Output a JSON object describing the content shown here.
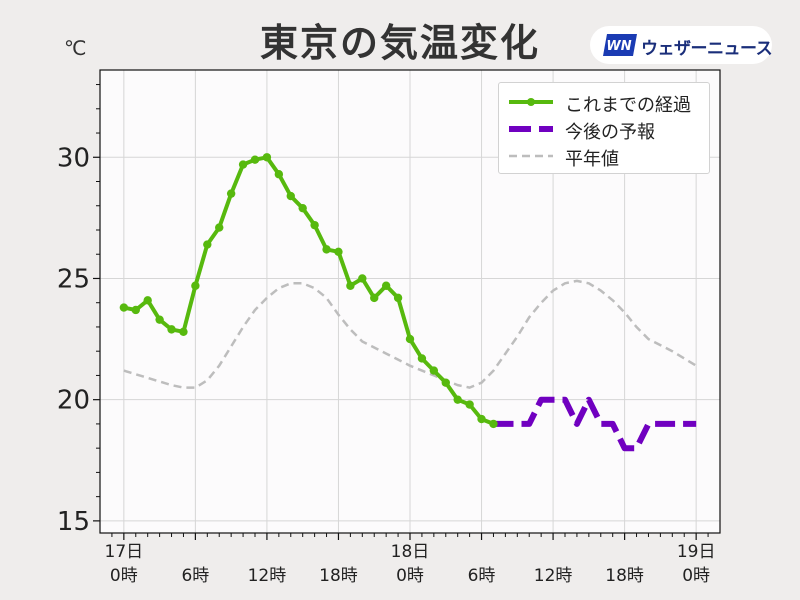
{
  "header": {
    "title": "東京の気温変化",
    "unit": "℃",
    "logo_text": "ウェザーニュース"
  },
  "legend": [
    {
      "label": "これまでの経過",
      "color": "#57b90e"
    },
    {
      "label": "今後の予報",
      "color": "#7000c0"
    },
    {
      "label": "平年値",
      "color": "#bdbdbd"
    }
  ],
  "chart_data": {
    "type": "line",
    "title": "東京の気温変化",
    "ylabel": "℃",
    "ylim": [
      14.5,
      33.6
    ],
    "xlim": [
      -2,
      50
    ],
    "x_unit": "hours from 17日 0時",
    "grid": true,
    "legend_position": "top-right",
    "y_ticks": [
      15,
      20,
      25,
      30
    ],
    "x_ticks": [
      {
        "x": 0,
        "line1": "17日",
        "line2": "0時"
      },
      {
        "x": 6,
        "line1": "",
        "line2": "6時"
      },
      {
        "x": 12,
        "line1": "",
        "line2": "12時"
      },
      {
        "x": 18,
        "line1": "",
        "line2": "18時"
      },
      {
        "x": 24,
        "line1": "18日",
        "line2": "0時"
      },
      {
        "x": 30,
        "line1": "",
        "line2": "6時"
      },
      {
        "x": 36,
        "line1": "",
        "line2": "12時"
      },
      {
        "x": 42,
        "line1": "",
        "line2": "18時"
      },
      {
        "x": 48,
        "line1": "19日",
        "line2": "0時"
      }
    ],
    "series": [
      {
        "name": "これまでの経過",
        "color": "#57b90e",
        "style": "solid-markers",
        "x": [
          0,
          1,
          2,
          3,
          4,
          5,
          6,
          7,
          8,
          9,
          10,
          11,
          12,
          13,
          14,
          15,
          16,
          17,
          18,
          19,
          20,
          21,
          22,
          23,
          24,
          25,
          26,
          27,
          28,
          29,
          30,
          31
        ],
        "y": [
          23.8,
          23.7,
          24.1,
          23.3,
          22.9,
          22.8,
          24.7,
          26.4,
          27.1,
          28.5,
          29.7,
          29.9,
          30.0,
          29.3,
          28.4,
          27.9,
          27.2,
          26.2,
          26.1,
          24.7,
          25.0,
          24.2,
          24.7,
          24.2,
          22.5,
          21.7,
          21.2,
          20.7,
          20.0,
          19.8,
          19.2,
          19.0
        ]
      },
      {
        "name": "今後の予報",
        "color": "#7000c0",
        "style": "dashed",
        "x": [
          31,
          34,
          35,
          36,
          37,
          38,
          39,
          40,
          41,
          42,
          43,
          44,
          45,
          46,
          47,
          48
        ],
        "y": [
          19,
          19,
          20,
          20,
          20,
          19,
          20,
          19,
          19,
          18,
          18,
          19,
          19,
          19,
          19,
          19
        ]
      },
      {
        "name": "平年値",
        "color": "#bdbdbd",
        "style": "dashed-thin",
        "x": [
          0,
          2,
          4,
          5,
          6,
          7,
          8,
          9,
          10,
          11,
          12,
          13,
          14,
          15,
          16,
          17,
          18,
          19,
          20,
          22,
          24,
          26,
          28,
          29,
          30,
          31,
          32,
          33,
          34,
          35,
          36,
          37,
          38,
          39,
          40,
          41,
          42,
          43,
          44,
          46,
          48
        ],
        "y": [
          21.2,
          20.9,
          20.6,
          20.5,
          20.5,
          20.8,
          21.4,
          22.2,
          23.0,
          23.7,
          24.2,
          24.6,
          24.8,
          24.8,
          24.6,
          24.2,
          23.5,
          22.9,
          22.4,
          21.9,
          21.4,
          21.0,
          20.6,
          20.5,
          20.7,
          21.2,
          21.9,
          22.6,
          23.4,
          24.0,
          24.5,
          24.8,
          24.9,
          24.8,
          24.5,
          24.1,
          23.6,
          23.0,
          22.5,
          22.0,
          21.4
        ]
      }
    ]
  }
}
